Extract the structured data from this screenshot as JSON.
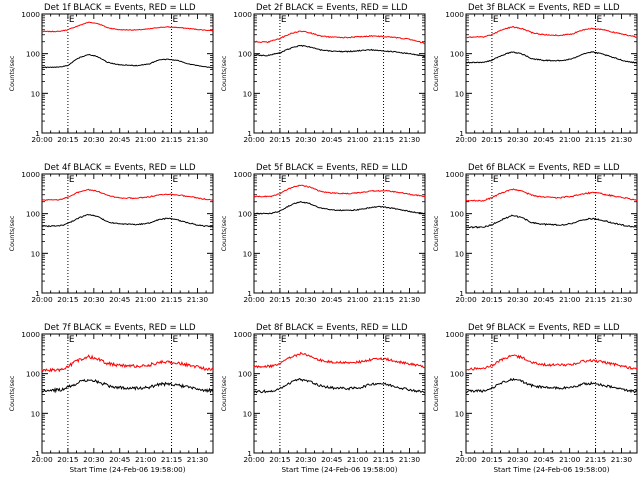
{
  "figure": {
    "background": "#ffffff",
    "axis_color": "#000000",
    "events_color": "#000000",
    "lld_color": "#ff0000"
  },
  "chart_data": [
    {
      "type": "line",
      "title": "Det 1f BLACK = Events, RED = LLD",
      "ylabel": "Counts/sec",
      "xlabel": "",
      "yscale": "log",
      "ylim": [
        1,
        1000
      ],
      "yticks": [
        "1",
        "10",
        "100",
        "1000"
      ],
      "xticks": [
        "20:00",
        "20:15",
        "20:30",
        "20:45",
        "21:00",
        "21:15",
        "21:30"
      ],
      "xlim_minutes": [
        0,
        99
      ],
      "event_marks": [
        {
          "label": "E",
          "x_minutes": 15
        },
        {
          "label": "E",
          "x_minutes": 75
        }
      ],
      "noise": 0.02,
      "series": [
        {
          "color": "#ff0000",
          "x_minutes": [
            0,
            10,
            15,
            22,
            27,
            32,
            38,
            45,
            55,
            62,
            68,
            73,
            78,
            85,
            92,
            99
          ],
          "values": [
            360,
            365,
            400,
            520,
            620,
            580,
            450,
            400,
            395,
            420,
            460,
            470,
            460,
            430,
            400,
            380
          ]
        },
        {
          "color": "#000000",
          "x_minutes": [
            0,
            10,
            15,
            22,
            27,
            32,
            38,
            45,
            55,
            62,
            68,
            73,
            78,
            85,
            92,
            99
          ],
          "values": [
            45,
            46,
            50,
            80,
            95,
            85,
            60,
            52,
            50,
            55,
            70,
            72,
            68,
            55,
            48,
            44
          ]
        }
      ]
    },
    {
      "type": "line",
      "title": "Det 2f BLACK = Events, RED = LLD",
      "ylabel": "Counts/sec",
      "xlabel": "",
      "yscale": "log",
      "ylim": [
        1,
        1000
      ],
      "yticks": [
        "1",
        "10",
        "100",
        "1000"
      ],
      "xticks": [
        "20:00",
        "20:15",
        "20:30",
        "20:45",
        "21:00",
        "21:15",
        "21:30"
      ],
      "xlim_minutes": [
        0,
        99
      ],
      "event_marks": [
        {
          "label": "E",
          "x_minutes": 15
        },
        {
          "label": "E",
          "x_minutes": 75
        }
      ],
      "noise": 0.03,
      "series": [
        {
          "color": "#ff0000",
          "x_minutes": [
            0,
            8,
            15,
            22,
            27,
            32,
            38,
            45,
            52,
            60,
            68,
            75,
            82,
            90,
            99
          ],
          "values": [
            200,
            195,
            240,
            330,
            370,
            340,
            280,
            260,
            255,
            265,
            280,
            270,
            255,
            230,
            180
          ]
        },
        {
          "color": "#000000",
          "x_minutes": [
            0,
            8,
            15,
            22,
            27,
            32,
            38,
            45,
            52,
            60,
            68,
            75,
            82,
            90,
            99
          ],
          "values": [
            92,
            90,
            105,
            140,
            160,
            150,
            125,
            115,
            112,
            118,
            125,
            118,
            110,
            100,
            85
          ]
        }
      ]
    },
    {
      "type": "line",
      "title": "Det 3f BLACK = Events, RED = LLD",
      "ylabel": "Counts/sec",
      "xlabel": "",
      "yscale": "log",
      "ylim": [
        1,
        1000
      ],
      "yticks": [
        "1",
        "10",
        "100",
        "1000"
      ],
      "xticks": [
        "20:00",
        "20:15",
        "20:30",
        "20:45",
        "21:00",
        "21:15",
        "21:30"
      ],
      "xlim_minutes": [
        0,
        99
      ],
      "event_marks": [
        {
          "label": "E",
          "x_minutes": 15
        },
        {
          "label": "E",
          "x_minutes": 75
        }
      ],
      "noise": 0.03,
      "series": [
        {
          "color": "#ff0000",
          "x_minutes": [
            0,
            10,
            15,
            22,
            27,
            32,
            38,
            45,
            55,
            62,
            68,
            73,
            78,
            85,
            92,
            99
          ],
          "values": [
            260,
            265,
            300,
            420,
            470,
            430,
            340,
            300,
            290,
            320,
            400,
            430,
            410,
            350,
            300,
            260
          ]
        },
        {
          "color": "#000000",
          "x_minutes": [
            0,
            10,
            15,
            22,
            27,
            32,
            38,
            45,
            55,
            62,
            68,
            73,
            78,
            85,
            92,
            99
          ],
          "values": [
            60,
            60,
            68,
            95,
            110,
            100,
            75,
            68,
            66,
            75,
            100,
            110,
            100,
            80,
            65,
            58
          ]
        }
      ]
    },
    {
      "type": "line",
      "title": "Det 4f BLACK = Events, RED = LLD",
      "ylabel": "Counts/sec",
      "xlabel": "",
      "yscale": "log",
      "ylim": [
        1,
        1000
      ],
      "yticks": [
        "1",
        "10",
        "100",
        "1000"
      ],
      "xticks": [
        "20:00",
        "20:15",
        "20:30",
        "20:45",
        "21:00",
        "21:15",
        "21:30"
      ],
      "xlim_minutes": [
        0,
        99
      ],
      "event_marks": [
        {
          "label": "E",
          "x_minutes": 15
        },
        {
          "label": "E",
          "x_minutes": 75
        }
      ],
      "noise": 0.03,
      "series": [
        {
          "color": "#ff0000",
          "x_minutes": [
            0,
            10,
            15,
            22,
            27,
            32,
            38,
            45,
            55,
            62,
            68,
            73,
            78,
            85,
            92,
            99
          ],
          "values": [
            220,
            225,
            260,
            360,
            400,
            370,
            290,
            250,
            245,
            265,
            300,
            310,
            300,
            270,
            240,
            220
          ]
        },
        {
          "color": "#000000",
          "x_minutes": [
            0,
            10,
            15,
            22,
            27,
            32,
            38,
            45,
            55,
            62,
            68,
            73,
            78,
            85,
            92,
            99
          ],
          "values": [
            48,
            49,
            56,
            80,
            95,
            85,
            62,
            55,
            53,
            58,
            72,
            76,
            70,
            58,
            50,
            47
          ]
        }
      ]
    },
    {
      "type": "line",
      "title": "Det 5f BLACK = Events, RED = LLD",
      "ylabel": "Counts/sec",
      "xlabel": "",
      "yscale": "log",
      "ylim": [
        1,
        1000
      ],
      "yticks": [
        "1",
        "10",
        "100",
        "1000"
      ],
      "xticks": [
        "20:00",
        "20:15",
        "20:30",
        "20:45",
        "21:00",
        "21:15",
        "21:30"
      ],
      "xlim_minutes": [
        0,
        99
      ],
      "event_marks": [
        {
          "label": "E",
          "x_minutes": 15
        },
        {
          "label": "E",
          "x_minutes": 75
        }
      ],
      "noise": 0.03,
      "series": [
        {
          "color": "#ff0000",
          "x_minutes": [
            0,
            10,
            15,
            22,
            27,
            32,
            38,
            45,
            55,
            62,
            68,
            73,
            78,
            85,
            92,
            99
          ],
          "values": [
            270,
            275,
            320,
            460,
            520,
            470,
            370,
            330,
            320,
            340,
            370,
            380,
            370,
            340,
            300,
            270
          ]
        },
        {
          "color": "#000000",
          "x_minutes": [
            0,
            10,
            15,
            22,
            27,
            32,
            38,
            45,
            55,
            62,
            68,
            73,
            78,
            85,
            92,
            99
          ],
          "values": [
            100,
            102,
            115,
            170,
            200,
            180,
            140,
            125,
            120,
            128,
            145,
            150,
            142,
            125,
            110,
            100
          ]
        }
      ]
    },
    {
      "type": "line",
      "title": "Det 6f BLACK = Events, RED = LLD",
      "ylabel": "Counts/sec",
      "xlabel": "",
      "yscale": "log",
      "ylim": [
        1,
        1000
      ],
      "yticks": [
        "1",
        "10",
        "100",
        "1000"
      ],
      "xticks": [
        "20:00",
        "20:15",
        "20:30",
        "20:45",
        "21:00",
        "21:15",
        "21:30"
      ],
      "xlim_minutes": [
        0,
        99
      ],
      "event_marks": [
        {
          "label": "E",
          "x_minutes": 15
        },
        {
          "label": "E",
          "x_minutes": 75
        }
      ],
      "noise": 0.04,
      "series": [
        {
          "color": "#ff0000",
          "x_minutes": [
            0,
            10,
            15,
            22,
            27,
            32,
            38,
            45,
            55,
            62,
            68,
            73,
            78,
            85,
            92,
            99
          ],
          "values": [
            210,
            215,
            250,
            350,
            410,
            370,
            290,
            260,
            255,
            275,
            320,
            340,
            320,
            280,
            250,
            220
          ]
        },
        {
          "color": "#000000",
          "x_minutes": [
            0,
            10,
            15,
            22,
            27,
            32,
            38,
            45,
            55,
            62,
            68,
            73,
            78,
            85,
            92,
            99
          ],
          "values": [
            45,
            46,
            52,
            75,
            90,
            80,
            60,
            54,
            52,
            57,
            70,
            75,
            70,
            58,
            50,
            45
          ]
        }
      ]
    },
    {
      "type": "line",
      "title": "Det 7f BLACK = Events, RED = LLD",
      "ylabel": "Counts/sec",
      "xlabel": "Start Time (24-Feb-06 19:58:00)",
      "yscale": "log",
      "ylim": [
        1,
        1000
      ],
      "yticks": [
        "1",
        "10",
        "100",
        "1000"
      ],
      "xticks": [
        "20:00",
        "20:15",
        "20:30",
        "20:45",
        "21:00",
        "21:15",
        "21:30"
      ],
      "xlim_minutes": [
        0,
        99
      ],
      "event_marks": [
        {
          "label": "E",
          "x_minutes": 15
        },
        {
          "label": "E",
          "x_minutes": 75
        }
      ],
      "noise": 0.09,
      "series": [
        {
          "color": "#ff0000",
          "x_minutes": [
            0,
            10,
            15,
            22,
            27,
            32,
            38,
            45,
            55,
            62,
            68,
            73,
            78,
            85,
            92,
            99
          ],
          "values": [
            120,
            125,
            150,
            230,
            270,
            240,
            180,
            160,
            155,
            165,
            195,
            200,
            190,
            165,
            140,
            125
          ]
        },
        {
          "color": "#000000",
          "x_minutes": [
            0,
            10,
            15,
            22,
            27,
            32,
            38,
            45,
            55,
            62,
            68,
            73,
            78,
            85,
            92,
            99
          ],
          "values": [
            38,
            39,
            45,
            62,
            70,
            64,
            50,
            45,
            43,
            46,
            54,
            56,
            52,
            45,
            40,
            37
          ]
        }
      ]
    },
    {
      "type": "line",
      "title": "Det 8f BLACK = Events, RED = LLD",
      "ylabel": "Counts/sec",
      "xlabel": "Start Time (24-Feb-06 19:58:00)",
      "yscale": "log",
      "ylim": [
        1,
        1000
      ],
      "yticks": [
        "1",
        "10",
        "100",
        "1000"
      ],
      "xticks": [
        "20:00",
        "20:15",
        "20:30",
        "20:45",
        "21:00",
        "21:15",
        "21:30"
      ],
      "xlim_minutes": [
        0,
        99
      ],
      "event_marks": [
        {
          "label": "E",
          "x_minutes": 15
        },
        {
          "label": "E",
          "x_minutes": 75
        }
      ],
      "noise": 0.07,
      "series": [
        {
          "color": "#ff0000",
          "x_minutes": [
            0,
            10,
            15,
            22,
            27,
            32,
            38,
            45,
            55,
            62,
            68,
            73,
            78,
            85,
            92,
            99
          ],
          "values": [
            150,
            155,
            180,
            270,
            320,
            290,
            220,
            195,
            190,
            200,
            230,
            240,
            225,
            195,
            170,
            150
          ]
        },
        {
          "color": "#000000",
          "x_minutes": [
            0,
            10,
            15,
            22,
            27,
            32,
            38,
            45,
            55,
            62,
            68,
            73,
            78,
            85,
            92,
            99
          ],
          "values": [
            35,
            36,
            42,
            62,
            72,
            65,
            50,
            44,
            42,
            45,
            55,
            57,
            52,
            44,
            38,
            34
          ]
        }
      ]
    },
    {
      "type": "line",
      "title": "Det 9f BLACK = Events, RED = LLD",
      "ylabel": "Counts/sec",
      "xlabel": "Start Time (24-Feb-06 19:58:00)",
      "yscale": "log",
      "ylim": [
        1,
        1000
      ],
      "yticks": [
        "1",
        "10",
        "100",
        "1000"
      ],
      "xticks": [
        "20:00",
        "20:15",
        "20:30",
        "20:45",
        "21:00",
        "21:15",
        "21:30"
      ],
      "xlim_minutes": [
        0,
        99
      ],
      "event_marks": [
        {
          "label": "E",
          "x_minutes": 15
        },
        {
          "label": "E",
          "x_minutes": 75
        }
      ],
      "noise": 0.07,
      "series": [
        {
          "color": "#ff0000",
          "x_minutes": [
            0,
            10,
            15,
            22,
            27,
            32,
            38,
            45,
            55,
            62,
            68,
            73,
            78,
            85,
            92,
            99
          ],
          "values": [
            130,
            135,
            160,
            240,
            290,
            260,
            195,
            170,
            165,
            175,
            205,
            215,
            200,
            175,
            150,
            130
          ]
        },
        {
          "color": "#000000",
          "x_minutes": [
            0,
            10,
            15,
            22,
            27,
            32,
            38,
            45,
            55,
            62,
            68,
            73,
            78,
            85,
            92,
            99
          ],
          "values": [
            36,
            37,
            43,
            62,
            72,
            65,
            50,
            45,
            43,
            46,
            55,
            57,
            53,
            45,
            39,
            35
          ]
        }
      ]
    }
  ]
}
